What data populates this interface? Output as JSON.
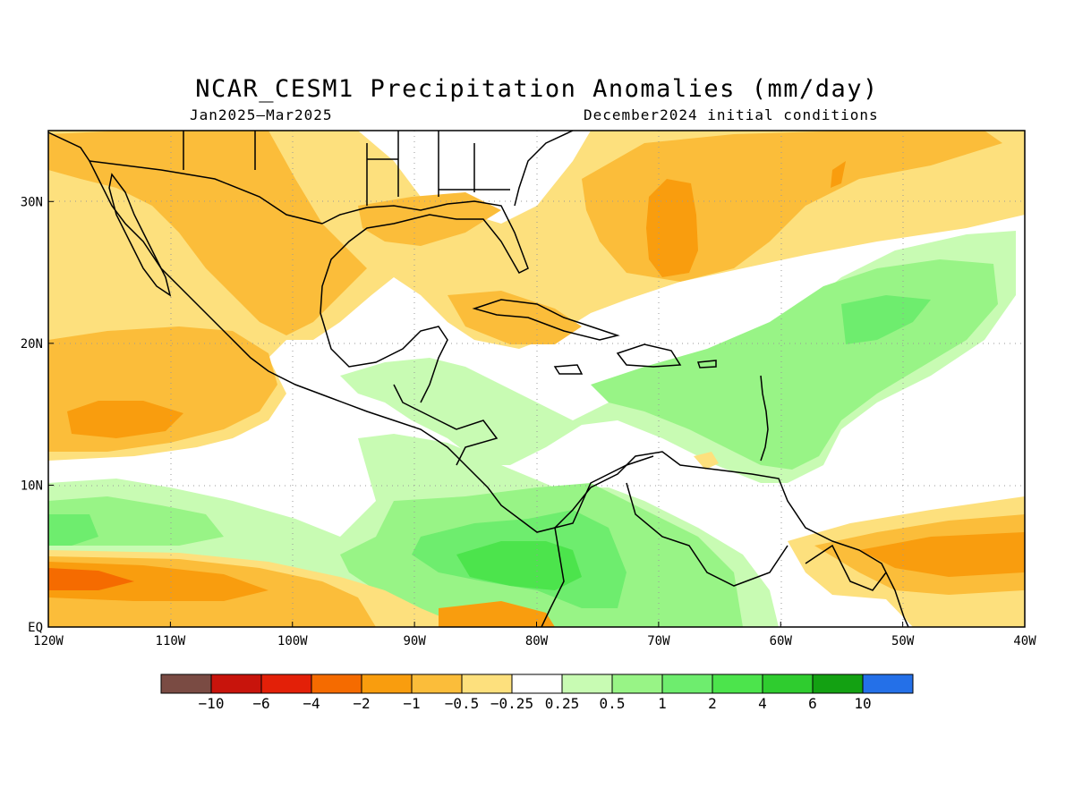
{
  "title": "NCAR_CESM1 Precipitation Anomalies (mm/day)",
  "subtitle_left": "Jan2025–Mar2025",
  "subtitle_right": "December2024 initial conditions",
  "map": {
    "lon_range": [
      -120,
      -40
    ],
    "lat_range": [
      0,
      35
    ],
    "gridlines": "dotted",
    "lon_ticks": [
      {
        "lon": -120,
        "label": "120W"
      },
      {
        "lon": -110,
        "label": "110W"
      },
      {
        "lon": -100,
        "label": "100W"
      },
      {
        "lon": -90,
        "label": "90W"
      },
      {
        "lon": -80,
        "label": "80W"
      },
      {
        "lon": -70,
        "label": "70W"
      },
      {
        "lon": -60,
        "label": "60W"
      },
      {
        "lon": -50,
        "label": "50W"
      },
      {
        "lon": -40,
        "label": "40W"
      }
    ],
    "lat_ticks": [
      {
        "lat": 0,
        "label": "EQ"
      },
      {
        "lat": 10,
        "label": "10N"
      },
      {
        "lat": 20,
        "label": "20N"
      },
      {
        "lat": 30,
        "label": "30N"
      }
    ]
  },
  "colorbar": {
    "colors": [
      "#7a4b43",
      "#c8140c",
      "#e32008",
      "#f56b00",
      "#f99d0e",
      "#fbbd3a",
      "#fde07d",
      "#ffffff",
      "#c8fbb3",
      "#98f486",
      "#6eed6e",
      "#4ce44c",
      "#2fcc2f",
      "#13a112",
      "#2470e8"
    ],
    "labels": [
      "−10",
      "−6",
      "−4",
      "−2",
      "−1",
      "−0.5",
      "−0.25",
      "0.25",
      "0.5",
      "1",
      "2",
      "4",
      "6",
      "10"
    ]
  }
}
